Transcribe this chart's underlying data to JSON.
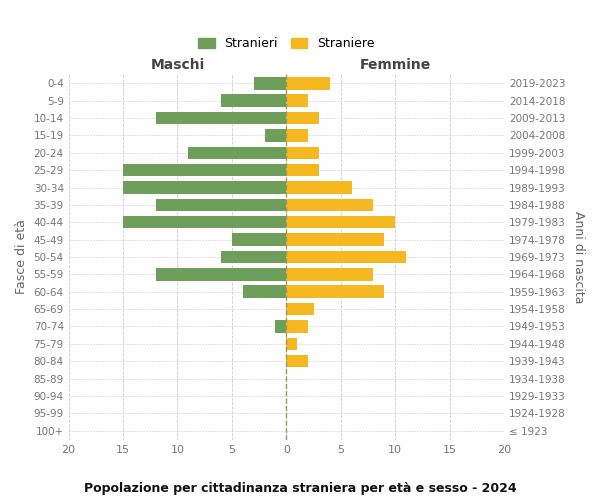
{
  "age_groups": [
    "100+",
    "95-99",
    "90-94",
    "85-89",
    "80-84",
    "75-79",
    "70-74",
    "65-69",
    "60-64",
    "55-59",
    "50-54",
    "45-49",
    "40-44",
    "35-39",
    "30-34",
    "25-29",
    "20-24",
    "15-19",
    "10-14",
    "5-9",
    "0-4"
  ],
  "birth_years": [
    "≤ 1923",
    "1924-1928",
    "1929-1933",
    "1934-1938",
    "1939-1943",
    "1944-1948",
    "1949-1953",
    "1954-1958",
    "1959-1963",
    "1964-1968",
    "1969-1973",
    "1974-1978",
    "1979-1983",
    "1984-1988",
    "1989-1993",
    "1994-1998",
    "1999-2003",
    "2004-2008",
    "2009-2013",
    "2014-2018",
    "2019-2023"
  ],
  "males": [
    0,
    0,
    0,
    0,
    0,
    0,
    1,
    0,
    4,
    12,
    6,
    5,
    15,
    12,
    15,
    15,
    9,
    2,
    12,
    6,
    3
  ],
  "females": [
    0,
    0,
    0,
    0,
    2,
    1,
    2,
    2.5,
    9,
    8,
    11,
    9,
    10,
    8,
    6,
    3,
    3,
    2,
    3,
    2,
    4
  ],
  "male_color": "#6d9e5a",
  "female_color": "#f5b820",
  "title": "Popolazione per cittadinanza straniera per età e sesso - 2024",
  "ylabel_left": "Fasce di età",
  "ylabel_right": "Anni di nascita",
  "header_left": "Maschi",
  "header_right": "Femmine",
  "legend_male": "Stranieri",
  "legend_female": "Straniere",
  "xlim": 20,
  "bg": "#ffffff",
  "grid_color": "#cccccc",
  "dashed_color": "#999966"
}
